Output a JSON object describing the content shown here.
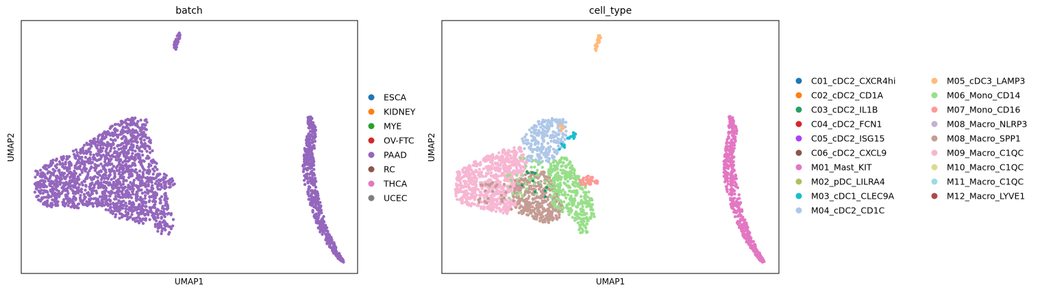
{
  "chart_data": [
    {
      "type": "scatter",
      "title": "batch",
      "xlabel": "UMAP1",
      "ylabel": "UMAP2",
      "legend_placement": "right",
      "grid": false,
      "legend": [
        {
          "name": "ESCA",
          "color": "#1f77b4"
        },
        {
          "name": "KIDNEY",
          "color": "#ff7f0e"
        },
        {
          "name": "MYE",
          "color": "#2ca02c"
        },
        {
          "name": "OV-FTC",
          "color": "#d62728"
        },
        {
          "name": "PAAD",
          "color": "#9467bd"
        },
        {
          "name": "RC",
          "color": "#8c564b"
        },
        {
          "name": "THCA",
          "color": "#e377c2"
        },
        {
          "name": "UCEC",
          "color": "#7f7f7f"
        }
      ]
    },
    {
      "type": "scatter",
      "title": "cell_type",
      "xlabel": "UMAP1",
      "ylabel": "UMAP2",
      "legend_placement": "right",
      "grid": false,
      "legend": [
        {
          "name": "C01_cDC2_CXCR4hi",
          "color": "#1f77b4"
        },
        {
          "name": "C02_cDC2_CD1A",
          "color": "#ff7f0e"
        },
        {
          "name": "C03_cDC2_IL1B",
          "color": "#279e68"
        },
        {
          "name": "C04_cDC2_FCN1",
          "color": "#d62728"
        },
        {
          "name": "C05_cDC2_ISG15",
          "color": "#aa40fc"
        },
        {
          "name": "C06_cDC2_CXCL9",
          "color": "#8c564b"
        },
        {
          "name": "M01_Mast_KIT",
          "color": "#e377c2"
        },
        {
          "name": "M02_pDC_LILRA4",
          "color": "#b5bd61"
        },
        {
          "name": "M03_cDC1_CLEC9A",
          "color": "#17becf"
        },
        {
          "name": "M04_cDC2_CD1C",
          "color": "#aec7e8"
        },
        {
          "name": "M05_cDC3_LAMP3",
          "color": "#ffbb78"
        },
        {
          "name": "M06_Mono_CD14",
          "color": "#98df8a"
        },
        {
          "name": "M07_Mono_CD16",
          "color": "#ff9896"
        },
        {
          "name": "M08_Macro_NLRP3",
          "color": "#c5b0d5"
        },
        {
          "name": "M08_Macro_SPP1",
          "color": "#c49c94"
        },
        {
          "name": "M09_Macro_C1QC",
          "color": "#f7b6d2"
        },
        {
          "name": "M10_Macro_C1QC",
          "color": "#dbdb8d"
        },
        {
          "name": "M11_Macro_C1QC",
          "color": "#9edae5"
        },
        {
          "name": "M12_Macro_LYVE1",
          "color": "#ad494a"
        }
      ]
    }
  ]
}
